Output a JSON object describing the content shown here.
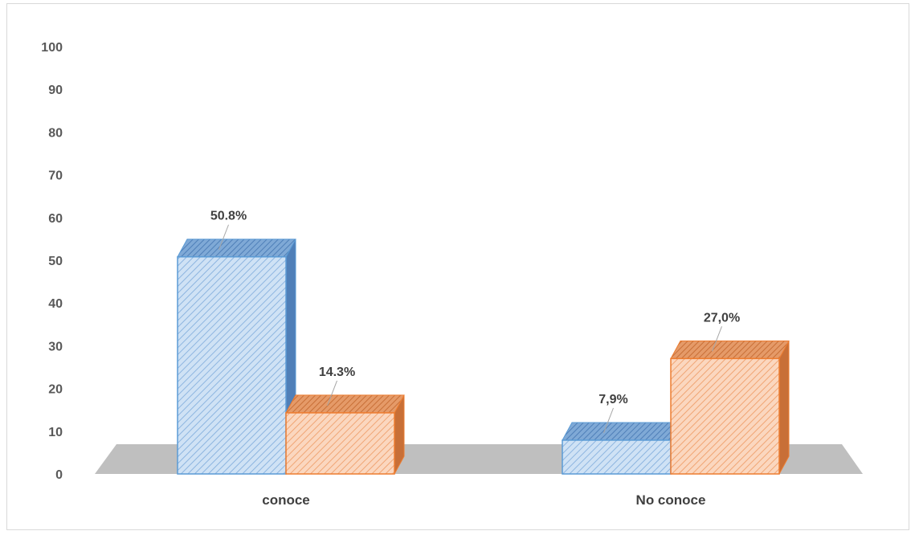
{
  "chart_data": {
    "type": "bar",
    "categories": [
      "conoce",
      "No conoce"
    ],
    "series": [
      {
        "values": [
          50.8,
          7.9
        ],
        "labels": [
          "50.8%",
          "7,9%"
        ],
        "color": "#9dc3e6",
        "edge": "#5b9bd5"
      },
      {
        "values": [
          14.3,
          27.0
        ],
        "labels": [
          "14.3%",
          "27,0%"
        ],
        "color": "#f4b183",
        "edge": "#ed7d31"
      }
    ],
    "ylim": [
      0,
      100
    ],
    "yticks": [
      0,
      10,
      20,
      30,
      40,
      50,
      60,
      70,
      80,
      90,
      100
    ],
    "grid": false,
    "legend": false,
    "floor_color": "#bfbfbf"
  }
}
